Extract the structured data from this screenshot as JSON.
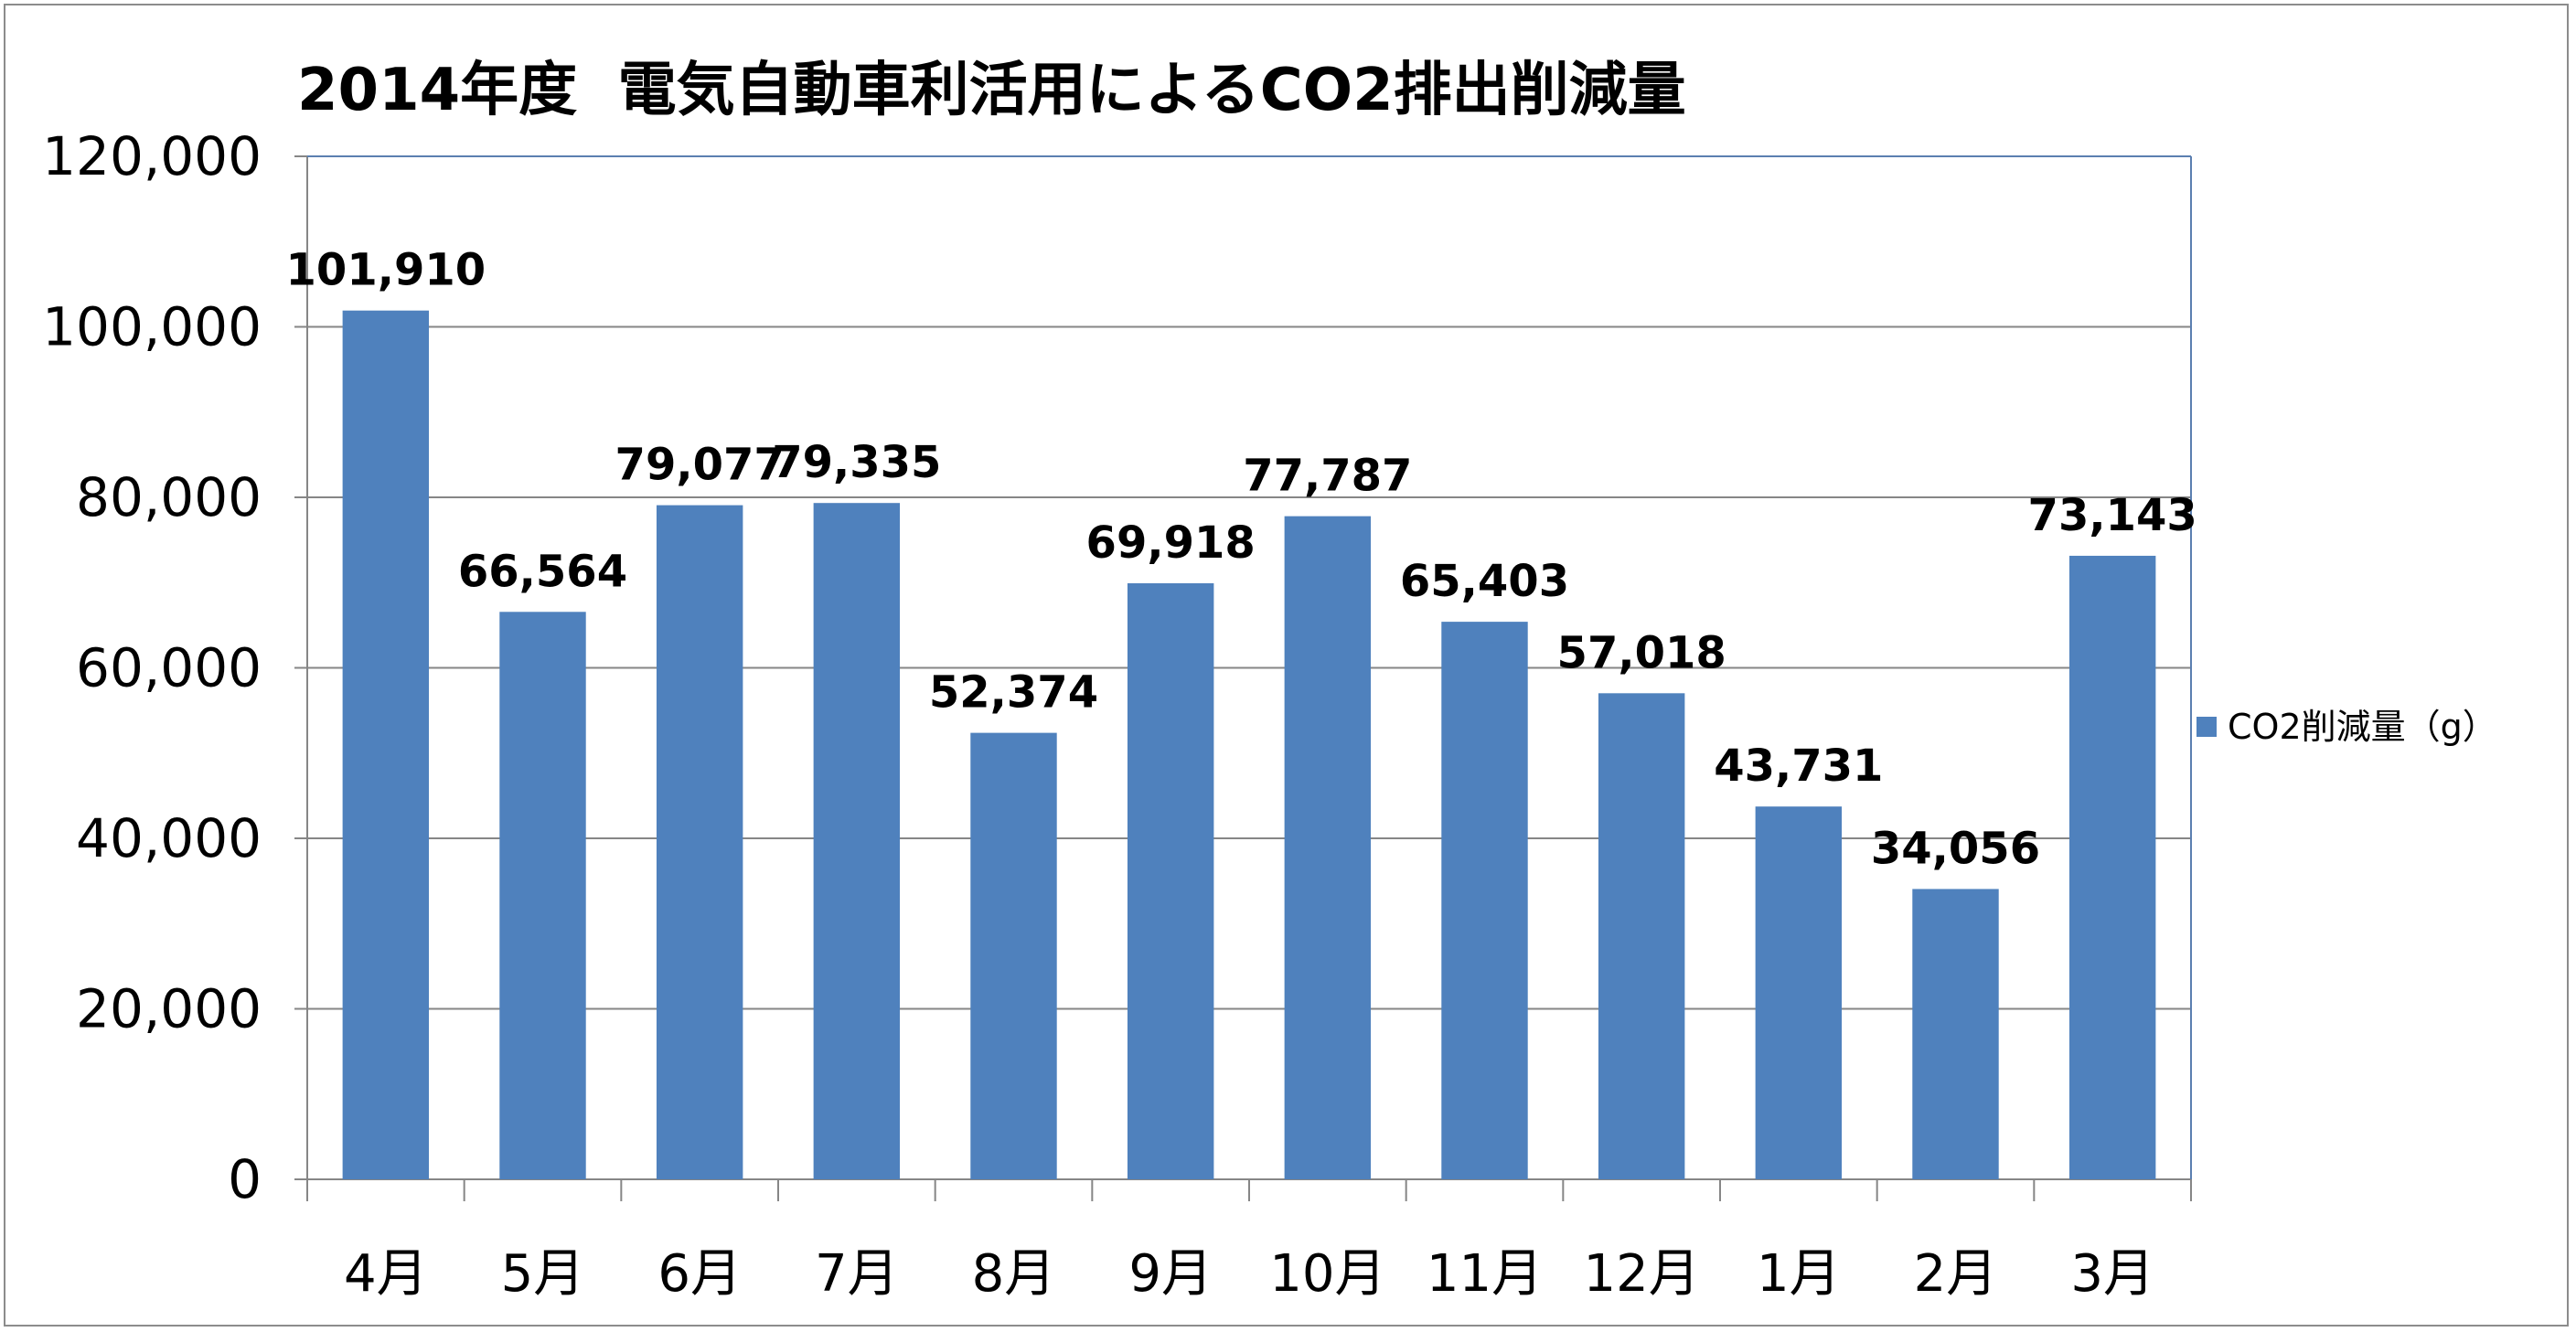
{
  "chart_data": {
    "type": "bar",
    "title": "2014年度  電気自動車利活用によるCO2排出削減量",
    "categories": [
      "4月",
      "5月",
      "6月",
      "7月",
      "8月",
      "9月",
      "10月",
      "11月",
      "12月",
      "1月",
      "2月",
      "3月"
    ],
    "series": [
      {
        "name": "CO2削減量（g）",
        "values": [
          101910,
          66564,
          79077,
          79335,
          52374,
          69918,
          77787,
          65403,
          57018,
          43731,
          34056,
          73143
        ],
        "labels": [
          "101,910",
          "66,564",
          "79,077",
          "79,335",
          "52,374",
          "69,918",
          "77,787",
          "65,403",
          "57,018",
          "43,731",
          "34,056",
          "73,143"
        ],
        "color": "#4f81bd"
      }
    ],
    "ylim": [
      0,
      120000
    ],
    "yticks": [
      "0",
      "20,000",
      "40,000",
      "60,000",
      "80,000",
      "100,000",
      "120,000"
    ],
    "ytick_values": [
      0,
      20000,
      40000,
      60000,
      80000,
      100000,
      120000
    ],
    "grid": true,
    "legend": "right",
    "xlabel": "",
    "ylabel": ""
  }
}
